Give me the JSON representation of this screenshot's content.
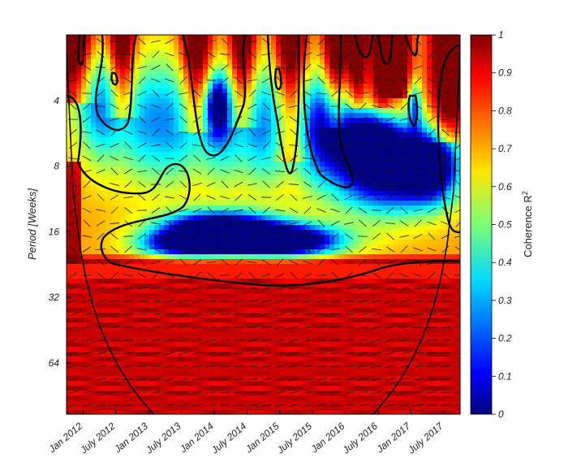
{
  "chart_data": {
    "type": "heatmap",
    "title": "",
    "ylabel": "Period [Weeks]",
    "y_scale": "log2",
    "y_ticks": [
      4,
      8,
      16,
      32,
      64
    ],
    "ylim": [
      2,
      110
    ],
    "x_ticks": [
      "Jan 2012",
      "July 2012",
      "Jan 2013",
      "July 2013",
      "Jan 2014",
      "July 2014",
      "Jan 2015",
      "July 2015",
      "Jan 2016",
      "July 2016",
      "Jan 2017",
      "July 2017"
    ],
    "xlim": [
      "2011-10",
      "2017-10"
    ],
    "colorbar": {
      "label": "Coherence R",
      "label_superscript": "2",
      "range": [
        0,
        1
      ],
      "ticks": [
        "0",
        "0.1",
        "0.2",
        "0.3",
        "0.4",
        "0.5",
        "0.6",
        "0.7",
        "0.8",
        "0.9",
        "1"
      ],
      "colormap": "jet"
    },
    "features": {
      "cone_of_influence": true,
      "significance_contours": true,
      "phase_arrows": true
    },
    "colors": {
      "significance_contour": "#000000",
      "cone_of_influence": "#000000",
      "phase_arrows": "#1a1a1a"
    }
  }
}
